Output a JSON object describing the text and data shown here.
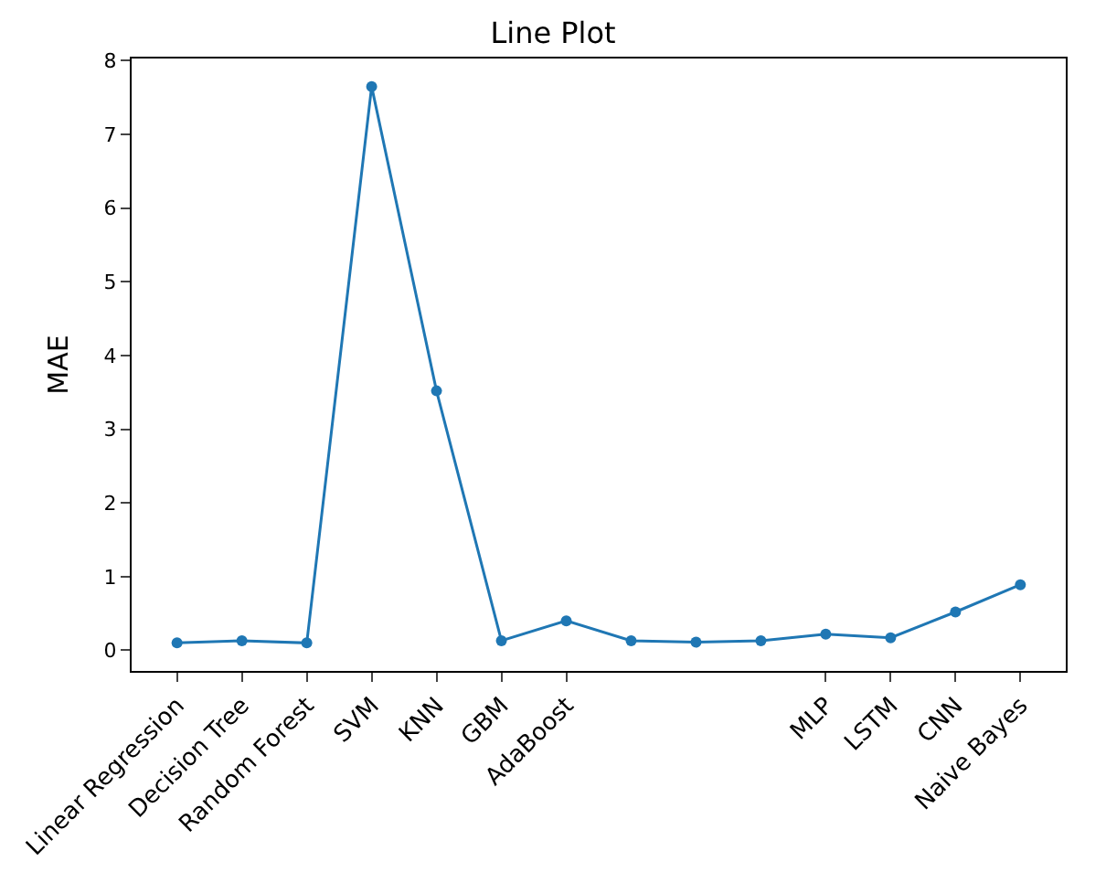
{
  "chart_data": {
    "type": "line",
    "title": "Line Plot",
    "ylabel": "MAE",
    "categories": [
      "Linear Regression",
      "Decision Tree",
      "Random Forest",
      "SVM",
      "KNN",
      "GBM",
      "AdaBoost",
      null,
      null,
      null,
      "MLP",
      "LSTM",
      "CNN",
      "Naive Bayes"
    ],
    "series": [
      {
        "color": "#1f77b4",
        "values": [
          0.1,
          0.13,
          0.1,
          7.65,
          3.52,
          0.13,
          0.4,
          0.13,
          0.11,
          0.13,
          0.22,
          0.17,
          0.52,
          0.89
        ]
      }
    ],
    "ylim": [
      -0.28,
      8.03
    ],
    "yticks": [
      0,
      1,
      2,
      3,
      4,
      5,
      6,
      7,
      8
    ],
    "marker": "circle",
    "line_style": "solid"
  }
}
